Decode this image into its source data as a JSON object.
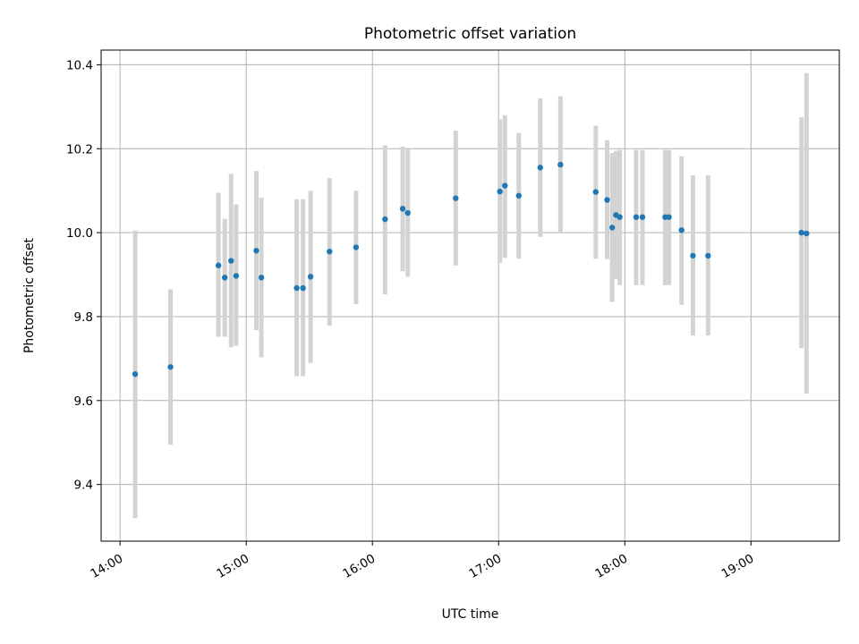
{
  "chart_data": {
    "type": "scatter",
    "title": "Photometric offset variation",
    "xlabel": "UTC time",
    "ylabel": "Photometric offset",
    "xlim_hours": [
      13.85,
      19.7
    ],
    "ylim": [
      9.265,
      10.435
    ],
    "x_ticks": [
      {
        "value": 14,
        "label": "14:00"
      },
      {
        "value": 15,
        "label": "15:00"
      },
      {
        "value": 16,
        "label": "16:00"
      },
      {
        "value": 17,
        "label": "17:00"
      },
      {
        "value": 18,
        "label": "18:00"
      },
      {
        "value": 19,
        "label": "19:00"
      }
    ],
    "y_ticks": [
      {
        "value": 9.4,
        "label": "9.4"
      },
      {
        "value": 9.6,
        "label": "9.6"
      },
      {
        "value": 9.8,
        "label": "9.8"
      },
      {
        "value": 10.0,
        "label": "10.0"
      },
      {
        "value": 10.2,
        "label": "10.2"
      },
      {
        "value": 10.4,
        "label": "10.4"
      }
    ],
    "grid": true,
    "legend": "none",
    "point_color": "#1f77b4",
    "errorbar_color": "#d3d3d3",
    "points": [
      {
        "x": 14.12,
        "y": 9.663,
        "yerr_low": 9.32,
        "yerr_high": 10.005
      },
      {
        "x": 14.4,
        "y": 9.68,
        "yerr_low": 9.495,
        "yerr_high": 9.865
      },
      {
        "x": 14.78,
        "y": 9.922,
        "yerr_low": 9.752,
        "yerr_high": 10.095
      },
      {
        "x": 14.83,
        "y": 9.893,
        "yerr_low": 9.752,
        "yerr_high": 10.033
      },
      {
        "x": 14.88,
        "y": 9.933,
        "yerr_low": 9.727,
        "yerr_high": 10.14
      },
      {
        "x": 14.92,
        "y": 9.897,
        "yerr_low": 9.73,
        "yerr_high": 10.067
      },
      {
        "x": 15.08,
        "y": 9.957,
        "yerr_low": 9.768,
        "yerr_high": 10.147
      },
      {
        "x": 15.12,
        "y": 9.893,
        "yerr_low": 9.703,
        "yerr_high": 10.083
      },
      {
        "x": 15.4,
        "y": 9.868,
        "yerr_low": 9.658,
        "yerr_high": 10.08
      },
      {
        "x": 15.45,
        "y": 9.868,
        "yerr_low": 9.658,
        "yerr_high": 10.08
      },
      {
        "x": 15.51,
        "y": 9.895,
        "yerr_low": 9.69,
        "yerr_high": 10.1
      },
      {
        "x": 15.66,
        "y": 9.955,
        "yerr_low": 9.778,
        "yerr_high": 10.13
      },
      {
        "x": 15.87,
        "y": 9.965,
        "yerr_low": 9.83,
        "yerr_high": 10.1
      },
      {
        "x": 16.1,
        "y": 10.032,
        "yerr_low": 9.853,
        "yerr_high": 10.208
      },
      {
        "x": 16.24,
        "y": 10.057,
        "yerr_low": 9.908,
        "yerr_high": 10.205
      },
      {
        "x": 16.28,
        "y": 10.047,
        "yerr_low": 9.895,
        "yerr_high": 10.198
      },
      {
        "x": 16.66,
        "y": 10.082,
        "yerr_low": 9.922,
        "yerr_high": 10.243
      },
      {
        "x": 17.01,
        "y": 10.098,
        "yerr_low": 9.928,
        "yerr_high": 10.27
      },
      {
        "x": 17.05,
        "y": 10.112,
        "yerr_low": 9.94,
        "yerr_high": 10.28
      },
      {
        "x": 17.16,
        "y": 10.088,
        "yerr_low": 9.938,
        "yerr_high": 10.238
      },
      {
        "x": 17.33,
        "y": 10.155,
        "yerr_low": 9.99,
        "yerr_high": 10.32
      },
      {
        "x": 17.49,
        "y": 10.162,
        "yerr_low": 10.0,
        "yerr_high": 10.325
      },
      {
        "x": 17.77,
        "y": 10.097,
        "yerr_low": 9.938,
        "yerr_high": 10.255
      },
      {
        "x": 17.86,
        "y": 10.078,
        "yerr_low": 9.937,
        "yerr_high": 10.22
      },
      {
        "x": 17.9,
        "y": 10.012,
        "yerr_low": 9.835,
        "yerr_high": 10.19
      },
      {
        "x": 17.93,
        "y": 10.042,
        "yerr_low": 9.89,
        "yerr_high": 10.195
      },
      {
        "x": 17.96,
        "y": 10.037,
        "yerr_low": 9.875,
        "yerr_high": 10.197
      },
      {
        "x": 18.09,
        "y": 10.037,
        "yerr_low": 9.875,
        "yerr_high": 10.197
      },
      {
        "x": 18.14,
        "y": 10.037,
        "yerr_low": 9.875,
        "yerr_high": 10.197
      },
      {
        "x": 18.32,
        "y": 10.037,
        "yerr_low": 9.875,
        "yerr_high": 10.197
      },
      {
        "x": 18.35,
        "y": 10.037,
        "yerr_low": 9.875,
        "yerr_high": 10.197
      },
      {
        "x": 18.45,
        "y": 10.006,
        "yerr_low": 9.828,
        "yerr_high": 10.182
      },
      {
        "x": 18.54,
        "y": 9.945,
        "yerr_low": 9.755,
        "yerr_high": 10.137
      },
      {
        "x": 18.66,
        "y": 9.945,
        "yerr_low": 9.755,
        "yerr_high": 10.137
      },
      {
        "x": 19.4,
        "y": 10.0,
        "yerr_low": 9.725,
        "yerr_high": 10.275
      },
      {
        "x": 19.44,
        "y": 9.998,
        "yerr_low": 9.617,
        "yerr_high": 10.38
      }
    ]
  }
}
